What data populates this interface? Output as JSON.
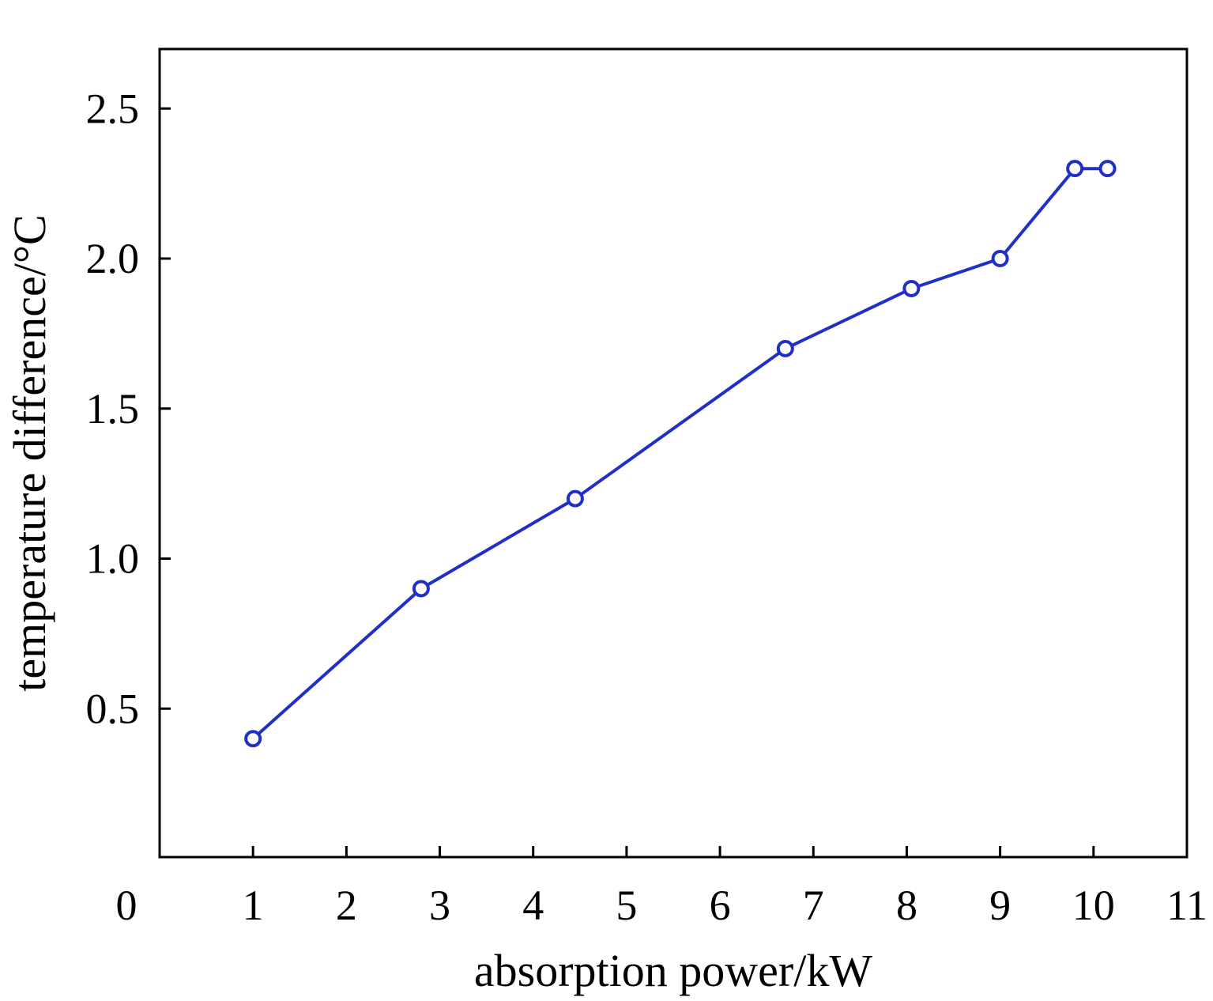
{
  "chart_data": {
    "type": "line",
    "title": "",
    "xlabel": "absorption power/kW",
    "ylabel": "temperature difference/°C",
    "xlim": [
      0,
      11
    ],
    "ylim": [
      0,
      2.7
    ],
    "x_ticks": [
      0,
      1,
      2,
      3,
      4,
      5,
      6,
      7,
      8,
      9,
      10,
      11
    ],
    "x_tick_labels": [
      "0",
      "1",
      "2",
      "3",
      "4",
      "5",
      "6",
      "7",
      "8",
      "9",
      "10",
      "11"
    ],
    "y_ticks": [
      0.5,
      1.0,
      1.5,
      2.0,
      2.5
    ],
    "y_tick_labels": [
      "0.5",
      "1.0",
      "1.5",
      "2.0",
      "2.5"
    ],
    "grid": false,
    "legend": "none",
    "colors": {
      "series": "#1f2fc8",
      "axes": "#000000"
    },
    "series": [
      {
        "marker": "open-circle",
        "x": [
          1.0,
          2.8,
          4.45,
          6.7,
          8.05,
          9.0,
          9.8,
          10.15
        ],
        "y": [
          0.4,
          0.9,
          1.2,
          1.7,
          1.9,
          2.0,
          2.3,
          2.3
        ]
      }
    ]
  }
}
